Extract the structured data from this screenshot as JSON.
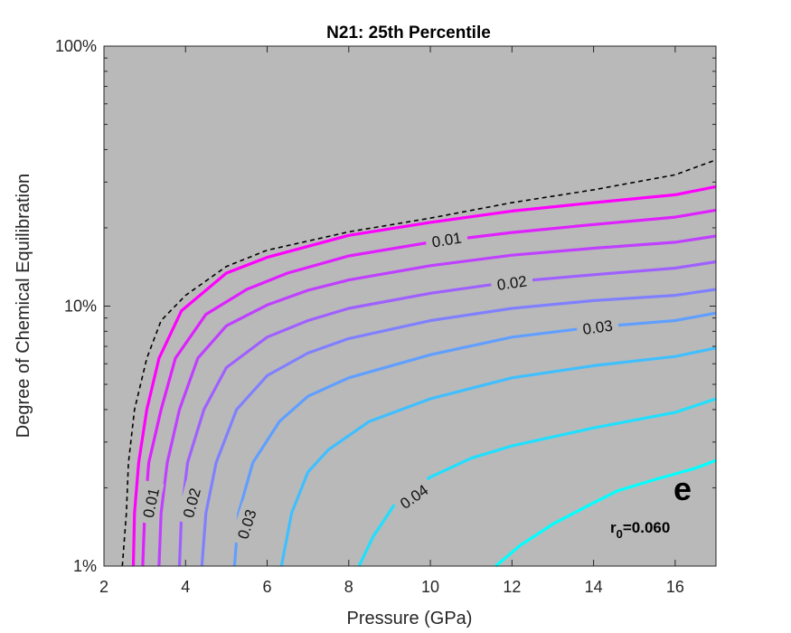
{
  "chart_data": {
    "type": "contour",
    "title": "N21: 25th Percentile",
    "xlabel": "Pressure (GPa)",
    "ylabel": "Degree of Chemical Equilibration",
    "xlim": [
      2,
      17
    ],
    "ylim": [
      1,
      100
    ],
    "yscale": "log",
    "xticks": [
      2,
      4,
      6,
      8,
      10,
      12,
      14,
      16
    ],
    "xtick_labels": [
      "2",
      "4",
      "6",
      "8",
      "10",
      "12",
      "14",
      "16"
    ],
    "yticks": [
      1,
      10,
      100
    ],
    "ytick_labels": [
      "1%",
      "10%",
      "100%"
    ],
    "grid": false,
    "panel_letter": "e",
    "annotation_r_main": "r",
    "annotation_r_sub": "0",
    "annotation_r_value": "=0.060",
    "colors": {
      "background": "#b9b9b9",
      "boundary": "#000000",
      "low": "#ff00ff",
      "high": "#00ffff"
    },
    "boundary": {
      "style": "dashed",
      "points": [
        [
          2.45,
          1.0
        ],
        [
          2.55,
          1.6
        ],
        [
          2.6,
          2.5
        ],
        [
          2.75,
          4.0
        ],
        [
          3.05,
          6.3
        ],
        [
          3.4,
          8.8
        ],
        [
          4.0,
          11.0
        ],
        [
          5.0,
          14.2
        ],
        [
          6.0,
          16.4
        ],
        [
          8.0,
          19.3
        ],
        [
          10.0,
          21.8
        ],
        [
          12.0,
          25.0
        ],
        [
          14.0,
          28.0
        ],
        [
          16.0,
          32.0
        ],
        [
          17.0,
          36.5
        ]
      ]
    },
    "contours": [
      {
        "level": 0.005,
        "points": [
          [
            2.72,
            1.0
          ],
          [
            2.75,
            1.6
          ],
          [
            2.85,
            2.5
          ],
          [
            3.05,
            4.0
          ],
          [
            3.35,
            6.3
          ],
          [
            3.9,
            9.6
          ],
          [
            5.0,
            13.4
          ],
          [
            6.0,
            15.4
          ],
          [
            8.0,
            18.7
          ],
          [
            10.0,
            21.0
          ],
          [
            12.0,
            23.2
          ],
          [
            14.0,
            25.0
          ],
          [
            16.0,
            26.8
          ],
          [
            17.0,
            28.8
          ]
        ]
      },
      {
        "level": 0.01,
        "label": "0.01",
        "points": [
          [
            2.95,
            1.0
          ],
          [
            3.0,
            1.6
          ],
          [
            3.1,
            2.5
          ],
          [
            3.4,
            4.0
          ],
          [
            3.75,
            6.3
          ],
          [
            4.5,
            9.3
          ],
          [
            5.5,
            11.6
          ],
          [
            6.5,
            13.4
          ],
          [
            8.0,
            15.6
          ],
          [
            10.0,
            17.6
          ],
          [
            12.0,
            19.2
          ],
          [
            14.0,
            20.6
          ],
          [
            16.0,
            22.0
          ],
          [
            17.0,
            23.4
          ]
        ]
      },
      {
        "level": 0.015,
        "points": [
          [
            3.35,
            1.0
          ],
          [
            3.4,
            1.6
          ],
          [
            3.55,
            2.5
          ],
          [
            3.85,
            4.0
          ],
          [
            4.3,
            6.3
          ],
          [
            5.0,
            8.4
          ],
          [
            6.0,
            10.1
          ],
          [
            7.0,
            11.5
          ],
          [
            8.0,
            12.6
          ],
          [
            10.0,
            14.3
          ],
          [
            12.0,
            15.7
          ],
          [
            14.0,
            16.7
          ],
          [
            16.0,
            17.6
          ],
          [
            17.0,
            18.6
          ]
        ]
      },
      {
        "level": 0.02,
        "label": "0.02",
        "points": [
          [
            3.85,
            1.0
          ],
          [
            3.9,
            1.6
          ],
          [
            4.05,
            2.5
          ],
          [
            4.45,
            4.0
          ],
          [
            5.0,
            5.8
          ],
          [
            6.0,
            7.6
          ],
          [
            7.0,
            8.8
          ],
          [
            8.0,
            9.8
          ],
          [
            10.0,
            11.2
          ],
          [
            12.0,
            12.4
          ],
          [
            14.0,
            13.2
          ],
          [
            16.0,
            14.0
          ],
          [
            17.0,
            14.8
          ]
        ]
      },
      {
        "level": 0.025,
        "points": [
          [
            4.4,
            1.0
          ],
          [
            4.5,
            1.6
          ],
          [
            4.75,
            2.5
          ],
          [
            5.25,
            4.0
          ],
          [
            6.0,
            5.4
          ],
          [
            7.0,
            6.6
          ],
          [
            8.0,
            7.5
          ],
          [
            10.0,
            8.8
          ],
          [
            12.0,
            9.8
          ],
          [
            14.0,
            10.5
          ],
          [
            16.0,
            11.0
          ],
          [
            17.0,
            11.6
          ]
        ]
      },
      {
        "level": 0.03,
        "label": "0.03",
        "points": [
          [
            5.2,
            1.0
          ],
          [
            5.3,
            1.6
          ],
          [
            5.65,
            2.5
          ],
          [
            6.3,
            3.6
          ],
          [
            7.0,
            4.5
          ],
          [
            8.0,
            5.3
          ],
          [
            10.0,
            6.5
          ],
          [
            12.0,
            7.6
          ],
          [
            14.0,
            8.3
          ],
          [
            16.0,
            8.8
          ],
          [
            17.0,
            9.4
          ]
        ]
      },
      {
        "level": 0.035,
        "points": [
          [
            6.35,
            1.0
          ],
          [
            6.6,
            1.6
          ],
          [
            7.0,
            2.3
          ],
          [
            7.5,
            2.8
          ],
          [
            8.5,
            3.6
          ],
          [
            10.0,
            4.4
          ],
          [
            12.0,
            5.3
          ],
          [
            14.0,
            5.9
          ],
          [
            16.0,
            6.4
          ],
          [
            17.0,
            6.9
          ]
        ]
      },
      {
        "level": 0.04,
        "label": "0.04",
        "points": [
          [
            8.25,
            1.0
          ],
          [
            8.6,
            1.3
          ],
          [
            9.2,
            1.8
          ],
          [
            10.0,
            2.2
          ],
          [
            11.0,
            2.6
          ],
          [
            12.0,
            2.9
          ],
          [
            14.0,
            3.4
          ],
          [
            16.0,
            3.9
          ],
          [
            17.0,
            4.4
          ]
        ]
      },
      {
        "level": 0.045,
        "points": [
          [
            11.6,
            1.0
          ],
          [
            12.2,
            1.2
          ],
          [
            13.0,
            1.45
          ],
          [
            14.0,
            1.75
          ],
          [
            14.6,
            1.95
          ],
          [
            15.5,
            2.15
          ],
          [
            16.5,
            2.38
          ],
          [
            17.0,
            2.55
          ]
        ]
      }
    ],
    "labels": [
      {
        "text": "0.01",
        "x": 10.4,
        "y": 18.0,
        "angle": -9
      },
      {
        "text": "0.02",
        "x": 12.0,
        "y": 12.3,
        "angle": -8
      },
      {
        "text": "0.03",
        "x": 14.1,
        "y": 8.3,
        "angle": -8
      },
      {
        "text": "0.01",
        "x": 3.15,
        "y": 1.75,
        "angle": -78
      },
      {
        "text": "0.02",
        "x": 4.15,
        "y": 1.75,
        "angle": -75
      },
      {
        "text": "0.03",
        "x": 5.5,
        "y": 1.45,
        "angle": -72
      },
      {
        "text": "0.04",
        "x": 9.6,
        "y": 1.85,
        "angle": -35
      }
    ]
  }
}
